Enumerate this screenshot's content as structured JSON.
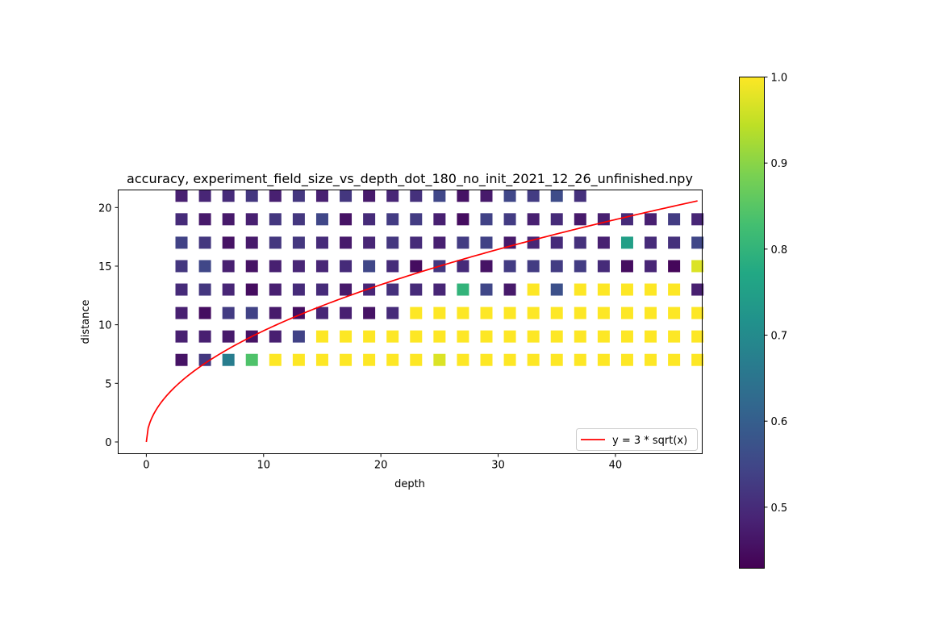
{
  "chart_data": {
    "type": "heatmap",
    "title": "accuracy, experiment_field_size_vs_depth_dot_180_no_init_2021_12_26_unfinished.npy",
    "xlabel": "depth",
    "ylabel": "distance",
    "xlim": [
      -2.4,
      47.4
    ],
    "ylim": [
      -1.0,
      21.5
    ],
    "xticks": [
      0,
      10,
      20,
      30,
      40
    ],
    "yticks": [
      0,
      5,
      10,
      15,
      20
    ],
    "grid": false,
    "legend_position": "lower-right",
    "colormap": "viridis",
    "colorbar": {
      "min": 0.43,
      "max": 1.0,
      "ticks": [
        0.5,
        0.6,
        0.7,
        0.8,
        0.9,
        1.0
      ],
      "tick_labels": [
        "0.5",
        "0.6",
        "0.7",
        "0.8",
        "0.9",
        "1.0"
      ]
    },
    "x": [
      3,
      5,
      7,
      9,
      11,
      13,
      15,
      17,
      19,
      21,
      23,
      25,
      27,
      29,
      31,
      33,
      35,
      37,
      39,
      41,
      43,
      45,
      47
    ],
    "y": [
      7,
      9,
      11,
      13,
      15,
      17,
      19,
      21
    ],
    "values": [
      [
        0.46,
        0.52,
        0.67,
        0.84,
        1.0,
        1.0,
        1.0,
        1.0,
        1.0,
        1.0,
        1.0,
        0.97,
        1.0,
        1.0,
        1.0,
        1.0,
        1.0,
        1.0,
        1.0,
        1.0,
        1.0,
        1.0,
        1.0
      ],
      [
        0.48,
        0.48,
        0.47,
        0.46,
        0.48,
        0.54,
        1.0,
        1.0,
        1.0,
        1.0,
        1.0,
        1.0,
        1.0,
        1.0,
        1.0,
        1.0,
        1.0,
        1.0,
        1.0,
        1.0,
        1.0,
        1.0,
        1.0
      ],
      [
        0.48,
        0.45,
        0.53,
        0.54,
        0.47,
        0.45,
        0.49,
        0.48,
        0.46,
        0.5,
        1.0,
        1.0,
        1.0,
        1.0,
        1.0,
        1.0,
        1.0,
        1.0,
        1.0,
        1.0,
        1.0,
        1.0,
        1.0
      ],
      [
        0.5,
        0.52,
        0.49,
        0.45,
        0.48,
        0.5,
        0.5,
        0.47,
        0.49,
        0.51,
        0.5,
        0.49,
        0.8,
        0.55,
        0.47,
        1.0,
        0.57,
        1.0,
        1.0,
        1.0,
        1.0,
        1.0,
        0.48
      ],
      [
        0.52,
        0.55,
        0.48,
        0.46,
        0.48,
        0.49,
        0.49,
        0.5,
        0.55,
        0.5,
        0.45,
        0.52,
        0.5,
        0.46,
        0.53,
        0.53,
        0.53,
        0.53,
        0.5,
        0.45,
        0.49,
        0.44,
        0.97
      ],
      [
        0.54,
        0.52,
        0.46,
        0.47,
        0.52,
        0.52,
        0.5,
        0.47,
        0.49,
        0.52,
        0.5,
        0.48,
        0.53,
        0.54,
        0.47,
        0.49,
        0.5,
        0.51,
        0.48,
        0.75,
        0.5,
        0.51,
        0.55
      ],
      [
        0.5,
        0.47,
        0.47,
        0.48,
        0.52,
        0.52,
        0.55,
        0.46,
        0.5,
        0.53,
        0.53,
        0.48,
        0.45,
        0.54,
        0.53,
        0.48,
        0.5,
        0.47,
        0.48,
        0.5,
        0.48,
        0.53,
        0.49
      ],
      [
        0.48,
        0.49,
        0.5,
        0.52,
        0.48,
        0.52,
        0.48,
        0.52,
        0.47,
        0.49,
        0.51,
        0.55,
        0.46,
        0.47,
        0.55,
        0.53,
        0.56,
        0.51,
        null,
        null,
        null,
        null,
        null
      ]
    ],
    "series": [
      {
        "name": "y = 3 * sqrt(x)",
        "type": "line",
        "color": "#ff0000",
        "function": "3*sqrt(x)",
        "x_range": [
          0,
          47
        ]
      }
    ]
  }
}
